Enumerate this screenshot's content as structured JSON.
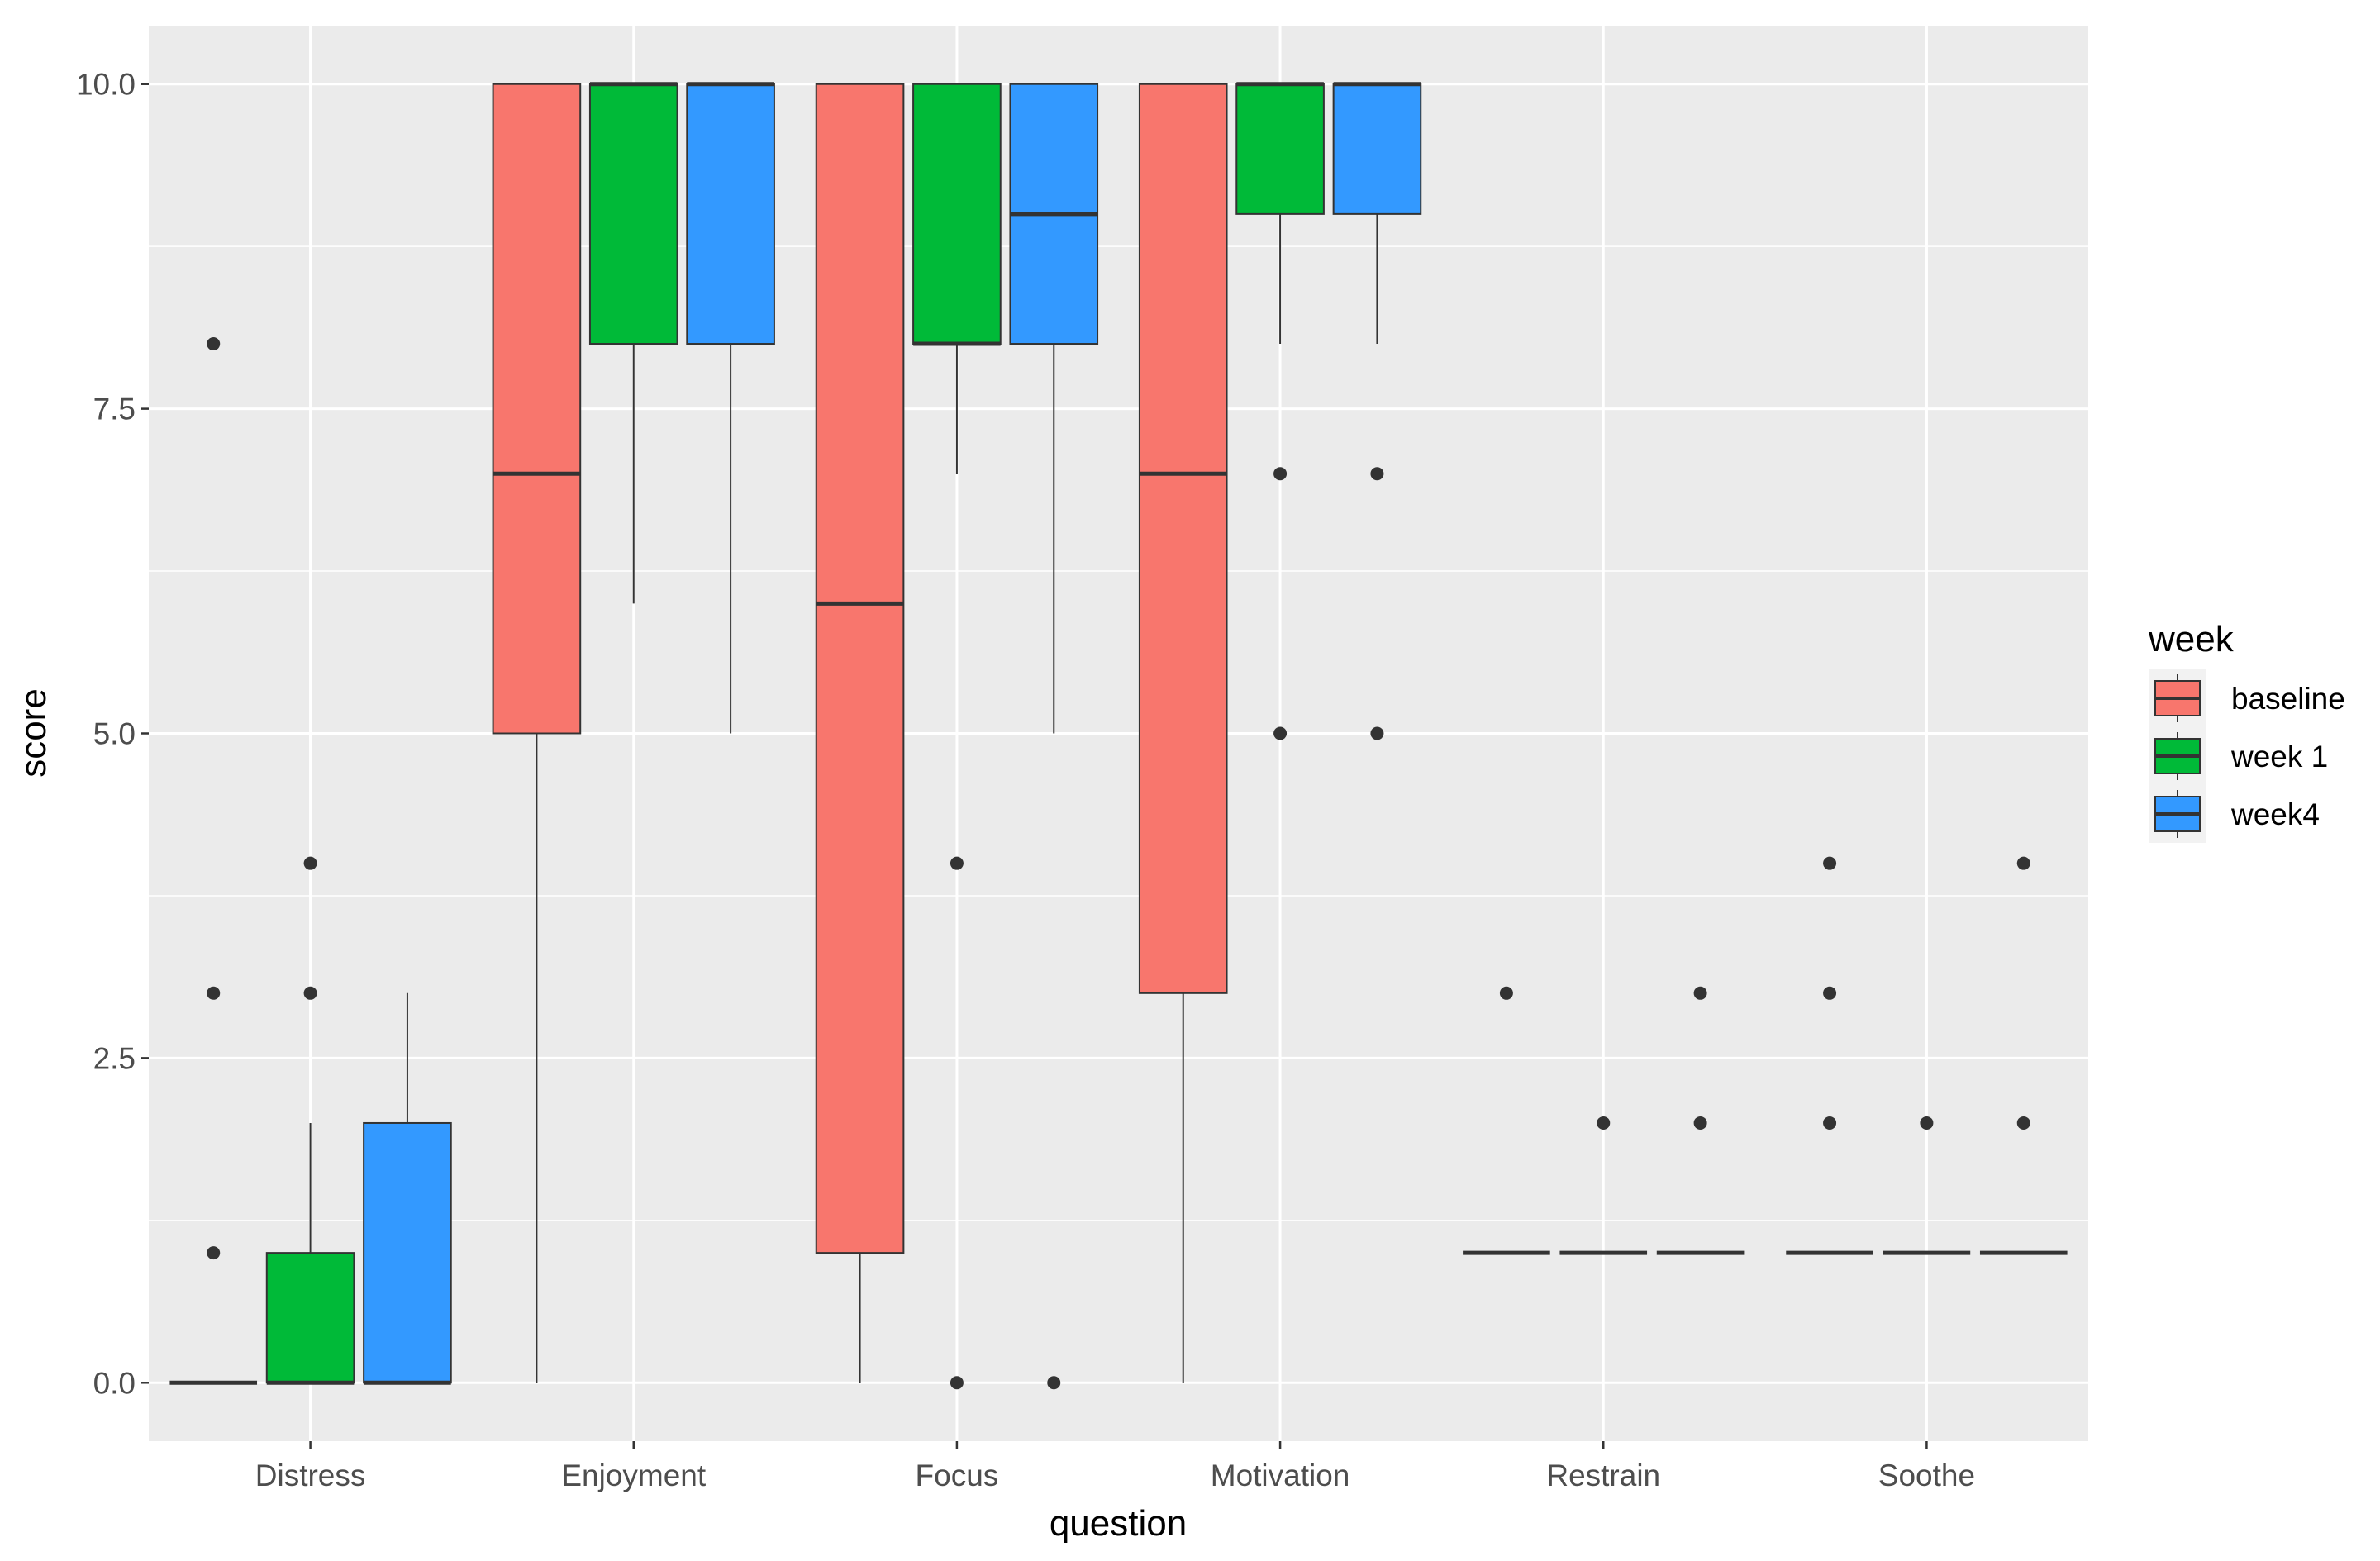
{
  "chart_data": {
    "type": "boxplot",
    "xlabel": "question",
    "ylabel": "score",
    "ylim": [
      -0.45,
      10.45
    ],
    "yticks": [
      "0.0",
      "2.5",
      "5.0",
      "7.5",
      "10.0"
    ],
    "ytick_values": [
      0,
      2.5,
      5,
      7.5,
      10
    ],
    "grid": true,
    "categories": [
      "Distress",
      "Enjoyment",
      "Focus",
      "Motivation",
      "Restrain",
      "Soothe"
    ],
    "legend": {
      "title": "week",
      "position": "right"
    },
    "series": [
      {
        "name": "baseline",
        "color": "#F8766D",
        "boxes": [
          {
            "category": "Distress",
            "lower": 0,
            "q1": 0,
            "median": 0,
            "q3": 0,
            "upper": 0,
            "outliers": [
              8,
              3,
              1
            ]
          },
          {
            "category": "Enjoyment",
            "lower": 0,
            "q1": 5,
            "median": 7,
            "q3": 10,
            "upper": 10,
            "outliers": []
          },
          {
            "category": "Focus",
            "lower": 0,
            "q1": 1,
            "median": 6,
            "q3": 10,
            "upper": 10,
            "outliers": []
          },
          {
            "category": "Motivation",
            "lower": 0,
            "q1": 3,
            "median": 7,
            "q3": 10,
            "upper": 10,
            "outliers": []
          },
          {
            "category": "Restrain",
            "lower": 1,
            "q1": 1,
            "median": 1,
            "q3": 1,
            "upper": 1,
            "outliers": [
              3
            ]
          },
          {
            "category": "Soothe",
            "lower": 1,
            "q1": 1,
            "median": 1,
            "q3": 1,
            "upper": 1,
            "outliers": [
              4,
              3,
              2
            ]
          }
        ]
      },
      {
        "name": "week 1",
        "color": "#00BA38",
        "boxes": [
          {
            "category": "Distress",
            "lower": 0,
            "q1": 0,
            "median": 0,
            "q3": 1,
            "upper": 2,
            "outliers": [
              4,
              3
            ]
          },
          {
            "category": "Enjoyment",
            "lower": 6,
            "q1": 8,
            "median": 10,
            "q3": 10,
            "upper": 10,
            "outliers": []
          },
          {
            "category": "Focus",
            "lower": 7,
            "q1": 8,
            "median": 8,
            "q3": 10,
            "upper": 10,
            "outliers": [
              4,
              0
            ]
          },
          {
            "category": "Motivation",
            "lower": 8,
            "q1": 9,
            "median": 10,
            "q3": 10,
            "upper": 10,
            "outliers": [
              7,
              5
            ]
          },
          {
            "category": "Restrain",
            "lower": 1,
            "q1": 1,
            "median": 1,
            "q3": 1,
            "upper": 1,
            "outliers": [
              2
            ]
          },
          {
            "category": "Soothe",
            "lower": 1,
            "q1": 1,
            "median": 1,
            "q3": 1,
            "upper": 1,
            "outliers": [
              2
            ]
          }
        ]
      },
      {
        "name": "week4",
        "color": "#3399FF",
        "boxes": [
          {
            "category": "Distress",
            "lower": 0,
            "q1": 0,
            "median": 0,
            "q3": 2,
            "upper": 3,
            "outliers": []
          },
          {
            "category": "Enjoyment",
            "lower": 5,
            "q1": 8,
            "median": 10,
            "q3": 10,
            "upper": 10,
            "outliers": []
          },
          {
            "category": "Focus",
            "lower": 5,
            "q1": 8,
            "median": 9,
            "q3": 10,
            "upper": 10,
            "outliers": [
              0
            ]
          },
          {
            "category": "Motivation",
            "lower": 8,
            "q1": 9,
            "median": 10,
            "q3": 10,
            "upper": 10,
            "outliers": [
              7,
              5
            ]
          },
          {
            "category": "Restrain",
            "lower": 1,
            "q1": 1,
            "median": 1,
            "q3": 1,
            "upper": 1,
            "outliers": [
              3,
              2
            ]
          },
          {
            "category": "Soothe",
            "lower": 1,
            "q1": 1,
            "median": 1,
            "q3": 1,
            "upper": 1,
            "outliers": [
              4,
              2
            ]
          }
        ]
      }
    ]
  }
}
